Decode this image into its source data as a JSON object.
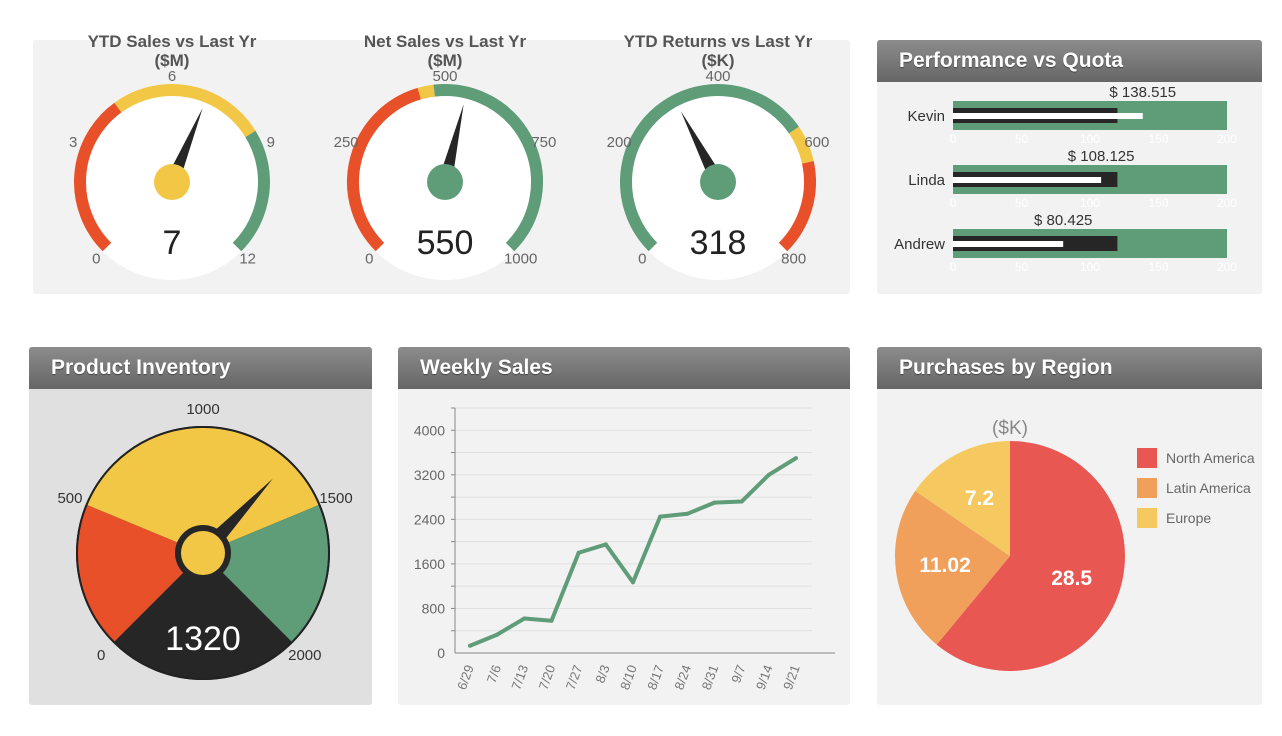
{
  "colors": {
    "red": "#e8502a",
    "yellow": "#f3c746",
    "green": "#5f9c78",
    "dark": "#262626",
    "pie_red": "#e85752",
    "pie_orange": "#f0a05a",
    "pie_yellow": "#f6c960"
  },
  "gauges": [
    {
      "title": "YTD Sales vs Last Yr",
      "unit": "($M)",
      "min": 0,
      "max": 12,
      "ticks": [
        0,
        3,
        6,
        9,
        12
      ],
      "value": 7,
      "hub": "yellow",
      "bands": [
        {
          "from": 0,
          "to": 4.4,
          "color": "red"
        },
        {
          "from": 4.4,
          "to": 8.6,
          "color": "yellow"
        },
        {
          "from": 8.6,
          "to": 12,
          "color": "green"
        }
      ]
    },
    {
      "title": "Net Sales vs Last Yr",
      "unit": "($M)",
      "min": 0,
      "max": 1000,
      "ticks": [
        0,
        250,
        500,
        750,
        1000
      ],
      "value": 550,
      "hub": "green",
      "bands": [
        {
          "from": 0,
          "to": 440,
          "color": "red"
        },
        {
          "from": 440,
          "to": 475,
          "color": "yellow"
        },
        {
          "from": 475,
          "to": 1000,
          "color": "green"
        }
      ]
    },
    {
      "title": "YTD Returns vs Last Yr",
      "unit": "($K)",
      "min": 0,
      "max": 800,
      "ticks": [
        0,
        200,
        400,
        600,
        800
      ],
      "value": 318,
      "hub": "green",
      "bands": [
        {
          "from": 0,
          "to": 565,
          "color": "green"
        },
        {
          "from": 565,
          "to": 630,
          "color": "yellow"
        },
        {
          "from": 630,
          "to": 800,
          "color": "red"
        }
      ]
    }
  ],
  "performance": {
    "title": "Performance vs Quota",
    "axis": [
      0,
      50,
      100,
      150,
      200
    ],
    "rows": [
      {
        "name": "Kevin",
        "value": 138.515,
        "label": "$ 138.515",
        "quota": 120
      },
      {
        "name": "Linda",
        "value": 108.125,
        "label": "$ 108.125",
        "quota": 120
      },
      {
        "name": "Andrew",
        "value": 80.425,
        "label": "$ 80.425",
        "quota": 120
      }
    ]
  },
  "inventory": {
    "title": "Product Inventory",
    "min": 0,
    "max": 2000,
    "ticks": [
      0,
      500,
      1000,
      1500,
      2000
    ],
    "value": 1320,
    "bands": [
      {
        "from": 0,
        "to": 500,
        "color": "red"
      },
      {
        "from": 500,
        "to": 1500,
        "color": "yellow"
      },
      {
        "from": 1500,
        "to": 2000,
        "color": "green"
      }
    ]
  },
  "chart_data": [
    {
      "type": "line",
      "title": "Weekly Sales",
      "categories": [
        "6/29",
        "7/6",
        "7/13",
        "7/20",
        "7/27",
        "8/3",
        "8/10",
        "8/17",
        "8/24",
        "8/31",
        "9/7",
        "9/14",
        "9/21"
      ],
      "values": [
        130,
        330,
        620,
        580,
        1800,
        1950,
        1270,
        2450,
        2500,
        2700,
        2720,
        3200,
        3500
      ],
      "ylim": [
        0,
        4400
      ],
      "yticks": [
        0,
        800,
        1600,
        2400,
        3200,
        4000
      ],
      "grid": true,
      "color": "#5f9c78"
    },
    {
      "type": "pie",
      "title": "Purchases by Region",
      "subtitle": "($K)",
      "legend": "right",
      "slices": [
        {
          "name": "North America",
          "value": 28.5,
          "label": "28.5",
          "color": "#e85752"
        },
        {
          "name": "Latin America",
          "value": 11.02,
          "label": "11.02",
          "color": "#f0a05a"
        },
        {
          "name": "Europe",
          "value": 7.2,
          "label": "7.2",
          "color": "#f6c960"
        }
      ]
    }
  ]
}
